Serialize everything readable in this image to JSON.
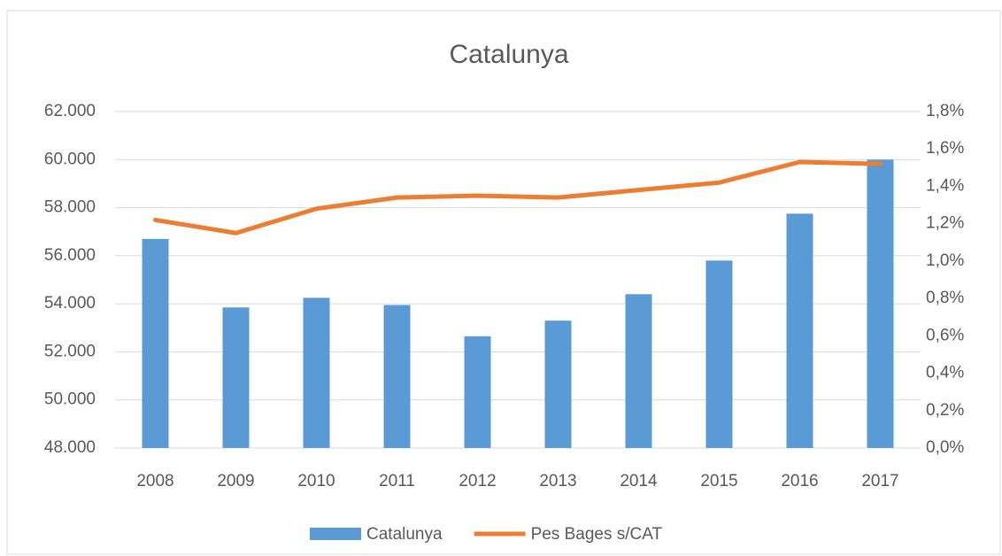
{
  "chart_data": {
    "type": "bar",
    "title": "Catalunya",
    "categories": [
      "2008",
      "2009",
      "2010",
      "2011",
      "2012",
      "2013",
      "2014",
      "2015",
      "2016",
      "2017"
    ],
    "series": [
      {
        "name": "Catalunya",
        "type": "bar",
        "color": "#5b9bd5",
        "values": [
          56700,
          53850,
          54250,
          53950,
          52650,
          53300,
          54400,
          55800,
          57750,
          60000
        ]
      },
      {
        "name": "Pes Bages s/CAT",
        "type": "line",
        "axis": "y2",
        "color": "#ed7d31",
        "values": [
          1.22,
          1.15,
          1.28,
          1.34,
          1.35,
          1.34,
          1.38,
          1.42,
          1.53,
          1.52
        ]
      }
    ],
    "ylim": [
      48000,
      62000
    ],
    "yticks": [
      {
        "value": 48000,
        "label": "48.000"
      },
      {
        "value": 50000,
        "label": "50.000"
      },
      {
        "value": 52000,
        "label": "52.000"
      },
      {
        "value": 54000,
        "label": "54.000"
      },
      {
        "value": 56000,
        "label": "56.000"
      },
      {
        "value": 58000,
        "label": "58.000"
      },
      {
        "value": 60000,
        "label": "60.000"
      },
      {
        "value": 62000,
        "label": "62.000"
      }
    ],
    "y2lim": [
      0,
      1.8
    ],
    "y2ticks": [
      {
        "value": 0,
        "label": "0,0%"
      },
      {
        "value": 0.2,
        "label": "0,2%"
      },
      {
        "value": 0.4,
        "label": "0,4%"
      },
      {
        "value": 0.6,
        "label": "0,6%"
      },
      {
        "value": 0.8,
        "label": "0,8%"
      },
      {
        "value": 1.0,
        "label": "1,0%"
      },
      {
        "value": 1.2,
        "label": "1,2%"
      },
      {
        "value": 1.4,
        "label": "1,4%"
      },
      {
        "value": 1.6,
        "label": "1,6%"
      },
      {
        "value": 1.8,
        "label": "1,8%"
      }
    ],
    "grid": true,
    "legend": "bottom"
  }
}
